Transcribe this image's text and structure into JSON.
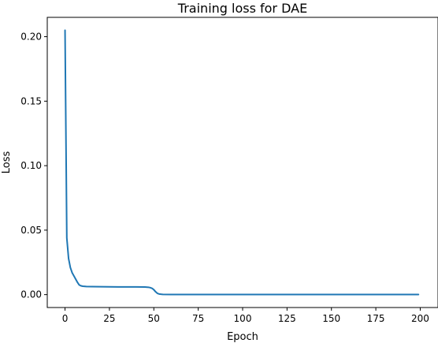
{
  "chart_data": {
    "type": "line",
    "title": "Training loss for DAE",
    "xlabel": "Epoch",
    "ylabel": "Loss",
    "xlim": [
      -10,
      210
    ],
    "ylim": [
      -0.01,
      0.215
    ],
    "xticks": [
      0,
      25,
      50,
      75,
      100,
      125,
      150,
      175,
      200
    ],
    "xtick_labels": [
      "0",
      "25",
      "50",
      "75",
      "100",
      "125",
      "150",
      "175",
      "200"
    ],
    "yticks": [
      0.0,
      0.05,
      0.1,
      0.15,
      0.2
    ],
    "ytick_labels": [
      "0.00",
      "0.05",
      "0.10",
      "0.15",
      "0.20"
    ],
    "grid": false,
    "series": [
      {
        "color": "#1f77b4",
        "x": [
          0,
          1,
          2,
          3,
          4,
          5,
          6,
          7,
          8,
          9,
          10,
          12,
          15,
          20,
          30,
          40,
          45,
          47,
          48,
          49,
          50,
          51,
          52,
          53,
          54,
          55,
          60,
          70,
          80,
          100,
          120,
          140,
          160,
          180,
          199
        ],
        "y": [
          0.205,
          0.044,
          0.028,
          0.021,
          0.017,
          0.0145,
          0.012,
          0.0095,
          0.0075,
          0.0068,
          0.0065,
          0.0063,
          0.0062,
          0.0061,
          0.006,
          0.006,
          0.0059,
          0.0057,
          0.0054,
          0.0049,
          0.0038,
          0.0022,
          0.001,
          0.0005,
          0.0003,
          0.0002,
          0.00012,
          0.0001,
          0.0001,
          0.0001,
          0.0001,
          0.0001,
          0.0001,
          0.0001,
          0.0001
        ]
      }
    ]
  }
}
